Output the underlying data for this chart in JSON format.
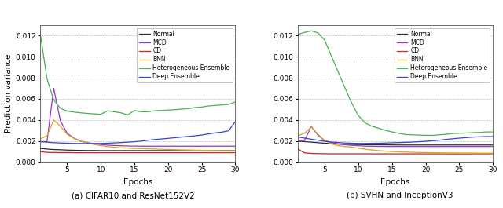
{
  "caption_a": "(a) CIFAR10 and ResNet152V2",
  "caption_b": "(b) SVHN and InceptionV3",
  "xlabel": "Epochs",
  "ylabel": "Prediction variance",
  "ylim": [
    0.0,
    0.013
  ],
  "yticks": [
    0.0,
    0.002,
    0.004,
    0.006,
    0.008,
    0.01,
    0.012
  ],
  "xlim": [
    1,
    30
  ],
  "xticks": [
    5,
    10,
    15,
    20,
    25,
    30
  ],
  "colors": {
    "Normal": "#2b2b2b",
    "MCD": "#9932CC",
    "CD": "#CC2222",
    "BNN": "#DAA520",
    "Heterogeneous Ensemble": "#4CAF50",
    "Deep Ensemble": "#3344CC"
  },
  "legend_order": [
    "Normal",
    "MCD",
    "CD",
    "BNN",
    "Heterogeneous Ensemble",
    "Deep Ensemble"
  ],
  "epochs": 30,
  "plot_a": {
    "Normal": [
      0.0013,
      0.00125,
      0.0012,
      0.00118,
      0.00115,
      0.00113,
      0.00112,
      0.00111,
      0.00111,
      0.0011,
      0.0011,
      0.0011,
      0.0011,
      0.0011,
      0.0011,
      0.0011,
      0.0011,
      0.0011,
      0.0011,
      0.0011,
      0.0011,
      0.0011,
      0.0011,
      0.0011,
      0.0011,
      0.0011,
      0.0011,
      0.0011,
      0.0011,
      0.0011
    ],
    "MCD": [
      0.00195,
      0.00195,
      0.007,
      0.0039,
      0.00275,
      0.00228,
      0.002,
      0.00185,
      0.00175,
      0.00167,
      0.00162,
      0.00158,
      0.00156,
      0.00154,
      0.00153,
      0.00152,
      0.00152,
      0.00152,
      0.00152,
      0.00152,
      0.00152,
      0.00152,
      0.00152,
      0.00152,
      0.00152,
      0.00152,
      0.00152,
      0.00152,
      0.00152,
      0.00152
    ],
    "CD": [
      0.001,
      0.00093,
      0.00092,
      0.00091,
      0.00091,
      0.0009,
      0.0009,
      0.0009,
      0.0009,
      0.0009,
      0.0009,
      0.0009,
      0.0009,
      0.0009,
      0.0009,
      0.0009,
      0.0009,
      0.0009,
      0.0009,
      0.0009,
      0.0009,
      0.0009,
      0.0009,
      0.0009,
      0.0009,
      0.0009,
      0.0009,
      0.0009,
      0.0009,
      0.0009
    ],
    "BNN": [
      0.0022,
      0.0025,
      0.004,
      0.0034,
      0.00265,
      0.00225,
      0.00198,
      0.00182,
      0.00168,
      0.00157,
      0.00148,
      0.00142,
      0.00137,
      0.00134,
      0.00131,
      0.00129,
      0.00127,
      0.00125,
      0.00123,
      0.00121,
      0.00119,
      0.00117,
      0.00116,
      0.00114,
      0.00113,
      0.00112,
      0.00111,
      0.0011,
      0.0011,
      0.0011
    ],
    "Heterogeneous Ensemble": [
      0.0122,
      0.0079,
      0.0059,
      0.0051,
      0.00485,
      0.00475,
      0.00468,
      0.00462,
      0.00458,
      0.00454,
      0.00488,
      0.00478,
      0.00468,
      0.00448,
      0.0049,
      0.00478,
      0.00478,
      0.00488,
      0.0049,
      0.00494,
      0.00498,
      0.00503,
      0.00508,
      0.00518,
      0.00523,
      0.00533,
      0.00538,
      0.00543,
      0.00548,
      0.00572
    ],
    "Deep Ensemble": [
      0.00195,
      0.0019,
      0.00185,
      0.00182,
      0.0018,
      0.00178,
      0.00177,
      0.00177,
      0.00177,
      0.00178,
      0.0018,
      0.00183,
      0.00186,
      0.0019,
      0.00194,
      0.002,
      0.00208,
      0.00215,
      0.0022,
      0.00226,
      0.00232,
      0.00238,
      0.00244,
      0.0025,
      0.00258,
      0.00268,
      0.00278,
      0.00285,
      0.00298,
      0.00385
    ]
  },
  "plot_b": {
    "Normal": [
      0.002,
      0.00195,
      0.0019,
      0.00185,
      0.0018,
      0.00175,
      0.00172,
      0.0017,
      0.00168,
      0.00167,
      0.00166,
      0.00165,
      0.00165,
      0.00164,
      0.00164,
      0.00163,
      0.00163,
      0.00163,
      0.00163,
      0.00163,
      0.00163,
      0.00163,
      0.00163,
      0.00163,
      0.00163,
      0.00163,
      0.00163,
      0.00163,
      0.00163,
      0.00163
    ],
    "MCD": [
      0.002,
      0.00205,
      0.0034,
      0.00255,
      0.00205,
      0.00187,
      0.00173,
      0.00165,
      0.0016,
      0.00156,
      0.00153,
      0.00151,
      0.0015,
      0.00149,
      0.00149,
      0.00149,
      0.00149,
      0.00149,
      0.00149,
      0.00149,
      0.00149,
      0.00149,
      0.00149,
      0.00149,
      0.00149,
      0.00149,
      0.00149,
      0.00149,
      0.00149,
      0.00149
    ],
    "CD": [
      0.00125,
      0.00088,
      0.00083,
      0.00081,
      0.0008,
      0.00079,
      0.00079,
      0.00079,
      0.00079,
      0.00079,
      0.00079,
      0.00079,
      0.00079,
      0.00079,
      0.00079,
      0.00079,
      0.00079,
      0.00079,
      0.00079,
      0.00079,
      0.00079,
      0.00079,
      0.00079,
      0.00079,
      0.00079,
      0.00079,
      0.00079,
      0.00079,
      0.00079,
      0.00079
    ],
    "BNN": [
      0.0025,
      0.00275,
      0.00335,
      0.00265,
      0.00205,
      0.00172,
      0.00157,
      0.00149,
      0.00143,
      0.00133,
      0.00123,
      0.00116,
      0.0011,
      0.00105,
      0.00101,
      0.00098,
      0.00096,
      0.00094,
      0.00092,
      0.00091,
      0.0009,
      0.00089,
      0.00088,
      0.00088,
      0.00087,
      0.00087,
      0.00087,
      0.00086,
      0.00086,
      0.00086
    ],
    "Heterogeneous Ensemble": [
      0.0121,
      0.0123,
      0.01245,
      0.01225,
      0.01155,
      0.01005,
      0.00855,
      0.00705,
      0.00562,
      0.00442,
      0.00372,
      0.00342,
      0.00322,
      0.00302,
      0.00287,
      0.00274,
      0.00262,
      0.0026,
      0.00257,
      0.00255,
      0.00254,
      0.0026,
      0.00264,
      0.00272,
      0.00274,
      0.00277,
      0.0028,
      0.00282,
      0.00287,
      0.00287
    ],
    "Deep Ensemble": [
      0.0024,
      0.00228,
      0.00218,
      0.00208,
      0.00198,
      0.00191,
      0.00186,
      0.00182,
      0.0018,
      0.00178,
      0.00178,
      0.00179,
      0.0018,
      0.00182,
      0.00184,
      0.00186,
      0.00188,
      0.00191,
      0.00194,
      0.00198,
      0.00203,
      0.00208,
      0.00216,
      0.00222,
      0.00228,
      0.00233,
      0.00238,
      0.00241,
      0.00243,
      0.00243
    ]
  }
}
